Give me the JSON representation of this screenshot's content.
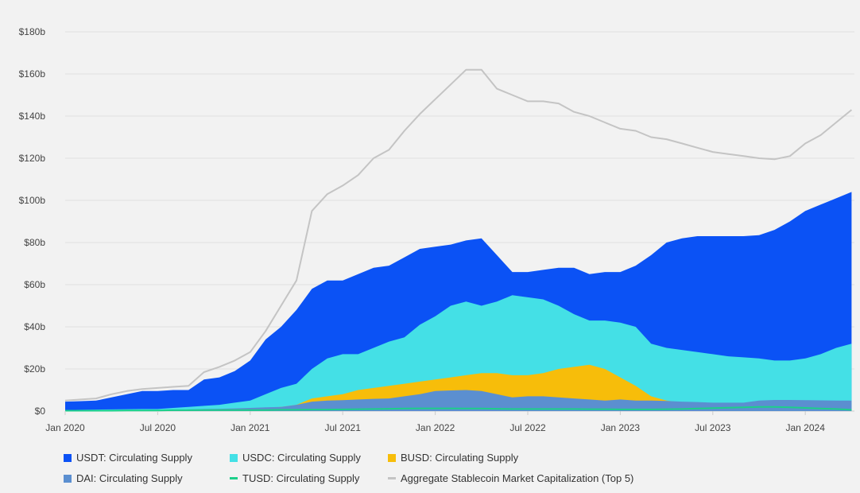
{
  "chart_data": {
    "type": "area",
    "title": "",
    "xlabel": "",
    "ylabel": "",
    "ylim": [
      0,
      180
    ],
    "y_unit": "billion USD",
    "y_ticks": [
      "$0",
      "$20b",
      "$40b",
      "$60b",
      "$80b",
      "$100b",
      "$120b",
      "$140b",
      "$160b",
      "$180b"
    ],
    "y_tick_values": [
      0,
      20,
      40,
      60,
      80,
      100,
      120,
      140,
      160,
      180
    ],
    "x_ticks": [
      "Jan 2020",
      "Jul 2020",
      "Jan 2021",
      "Jul 2021",
      "Jan 2022",
      "Jul 2022",
      "Jan 2023",
      "Jul 2023",
      "Jan 2024"
    ],
    "x_tick_dates": [
      "2020-01",
      "2020-07",
      "2021-01",
      "2021-07",
      "2022-01",
      "2022-07",
      "2023-01",
      "2023-07",
      "2024-01"
    ],
    "grid": "horizontal",
    "legend": "bottom",
    "x": [
      "2020-01",
      "2020-02",
      "2020-03",
      "2020-04",
      "2020-05",
      "2020-06",
      "2020-07",
      "2020-08",
      "2020-09",
      "2020-10",
      "2020-11",
      "2020-12",
      "2021-01",
      "2021-02",
      "2021-03",
      "2021-04",
      "2021-05",
      "2021-06",
      "2021-07",
      "2021-08",
      "2021-09",
      "2021-10",
      "2021-11",
      "2021-12",
      "2022-01",
      "2022-02",
      "2022-03",
      "2022-04",
      "2022-05",
      "2022-06",
      "2022-07",
      "2022-08",
      "2022-09",
      "2022-10",
      "2022-11",
      "2022-12",
      "2023-01",
      "2023-02",
      "2023-03",
      "2023-04",
      "2023-05",
      "2023-06",
      "2023-07",
      "2023-08",
      "2023-09",
      "2023-10",
      "2023-11",
      "2023-12",
      "2024-01",
      "2024-02",
      "2024-03",
      "2024-04"
    ],
    "series": [
      {
        "name": "USDT: Circulating Supply",
        "kind": "area",
        "color": "#0b52f5",
        "values": [
          4.5,
          4.7,
          5,
          6.5,
          8,
          9.5,
          9.5,
          10,
          10,
          15,
          16,
          19,
          24,
          34,
          40,
          48,
          58,
          62,
          62,
          65,
          68,
          69,
          73,
          77,
          78,
          79,
          81,
          82,
          74,
          66,
          66,
          67,
          68,
          68,
          65,
          66,
          66,
          69,
          74,
          80,
          82,
          83,
          83,
          83,
          83,
          83.5,
          86,
          90,
          95,
          98,
          101,
          104
        ]
      },
      {
        "name": "USDC: Circulating Supply",
        "kind": "area",
        "color": "#44e0e6",
        "values": [
          0.5,
          0.6,
          0.7,
          0.8,
          0.9,
          1,
          1,
          1.5,
          2,
          2.5,
          3,
          4,
          5,
          8,
          11,
          13,
          20,
          25,
          27,
          27,
          30,
          33,
          35,
          41,
          45,
          50,
          52,
          50,
          52,
          55,
          54,
          53,
          50,
          46,
          43,
          43,
          42,
          40,
          32,
          30,
          29,
          28,
          27,
          26,
          25.5,
          25,
          24,
          24,
          25,
          27,
          30,
          32
        ]
      },
      {
        "name": "BUSD: Circulating Supply",
        "kind": "area",
        "color": "#f7bd0a",
        "values": [
          0,
          0,
          0,
          0,
          0,
          0,
          0,
          0,
          0.2,
          0.4,
          0.6,
          0.8,
          1,
          1.5,
          2,
          3,
          6,
          7,
          8,
          10,
          11,
          12,
          13,
          14,
          15,
          16,
          17,
          18,
          18,
          17,
          17,
          18,
          20,
          21,
          22,
          20,
          16,
          12,
          7,
          5,
          4,
          3.5,
          3,
          2.5,
          2,
          1.5,
          1,
          0.8,
          0.5,
          0.3,
          0.2,
          0.1
        ]
      },
      {
        "name": "DAI: Circulating Supply",
        "kind": "area",
        "color": "#5b8fd0",
        "values": [
          0.1,
          0.1,
          0.1,
          0.1,
          0.1,
          0.2,
          0.3,
          0.5,
          0.8,
          1,
          1.1,
          1.3,
          1.5,
          1.8,
          2,
          3,
          4.5,
          5,
          5.2,
          5.5,
          5.8,
          6,
          7,
          8,
          9.5,
          9.8,
          10,
          9.5,
          8,
          6.5,
          7,
          7,
          6.5,
          6,
          5.5,
          5,
          5.5,
          5,
          5,
          4.8,
          4.5,
          4.3,
          4,
          4,
          4,
          5,
          5.3,
          5.3,
          5.2,
          5.1,
          5,
          5
        ]
      },
      {
        "name": "TUSD: Circulating Supply",
        "kind": "line",
        "color": "#1ccf8a",
        "values": [
          0.2,
          0.2,
          0.2,
          0.2,
          0.3,
          0.3,
          0.3,
          0.4,
          0.4,
          0.5,
          0.5,
          0.5,
          0.5,
          0.5,
          0.6,
          0.6,
          0.7,
          0.7,
          0.8,
          0.9,
          1,
          1.1,
          1.2,
          1.3,
          1.3,
          1.3,
          1.2,
          1.2,
          1.1,
          1,
          1,
          1,
          1,
          1,
          0.9,
          0.9,
          0.8,
          0.8,
          0.8,
          0.9,
          1,
          1.2,
          1.4,
          1.6,
          1.8,
          2,
          2,
          1.8,
          1.5,
          1.2,
          1,
          0.6
        ]
      },
      {
        "name": "Aggregate Stablecoin Market Capitalization (Top 5)",
        "kind": "line",
        "color": "#c4c4c4",
        "values": [
          5,
          5.5,
          6,
          8,
          9.5,
          10.5,
          11,
          11.5,
          12,
          18.5,
          21,
          24,
          28,
          38,
          50,
          62,
          95,
          103,
          107,
          112,
          120,
          124,
          133,
          141,
          148,
          155,
          162,
          162,
          153,
          150,
          147,
          147,
          146,
          142,
          140,
          137,
          134,
          133,
          130,
          129,
          127,
          125,
          123,
          122,
          121,
          120,
          119.5,
          121,
          127,
          131,
          137,
          143
        ]
      }
    ]
  }
}
